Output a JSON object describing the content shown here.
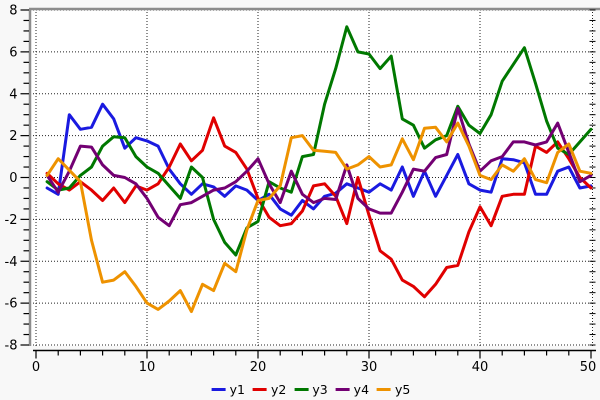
{
  "figure": {
    "background_color": "#f8f8f8",
    "plot_background_color": "#ffffff",
    "frame_color": "#8c8c8c",
    "grid_style": "dotted",
    "grid_color": "#222222",
    "axis_color": "#000000"
  },
  "chart_data": {
    "type": "line",
    "title": "",
    "xlabel": "",
    "ylabel": "",
    "xlim": [
      0,
      50
    ],
    "ylim": [
      -8,
      8
    ],
    "x_ticks": [
      0,
      10,
      20,
      30,
      40,
      50
    ],
    "x_minor_step": 2,
    "y_ticks": [
      8,
      6,
      4,
      2,
      0,
      -2,
      -4,
      -6,
      -8
    ],
    "y_minor_step": 0.5,
    "grid": "dotted",
    "legend_position": "bottom-center",
    "x": [
      1,
      2,
      3,
      4,
      5,
      6,
      7,
      8,
      9,
      10,
      11,
      12,
      13,
      14,
      15,
      16,
      17,
      18,
      19,
      20,
      21,
      22,
      23,
      24,
      25,
      26,
      27,
      28,
      29,
      30,
      31,
      32,
      33,
      34,
      35,
      36,
      37,
      38,
      39,
      40,
      41,
      42,
      43,
      44,
      45,
      46,
      47,
      48,
      49,
      50
    ],
    "series": [
      {
        "name": "y1",
        "color": "#1a1ae0",
        "values": [
          -0.5,
          -0.8,
          3.0,
          2.3,
          2.4,
          3.5,
          2.8,
          1.4,
          1.9,
          1.75,
          1.5,
          0.4,
          -0.3,
          -0.8,
          -0.3,
          -0.45,
          -0.9,
          -0.4,
          -0.6,
          -1.1,
          -0.8,
          -1.5,
          -1.8,
          -1.1,
          -1.5,
          -0.9,
          -0.75,
          -0.3,
          -0.5,
          -0.7,
          -0.3,
          -0.6,
          0.5,
          -0.9,
          0.3,
          -0.9,
          0.1,
          1.1,
          -0.3,
          -0.6,
          -0.7,
          0.9,
          0.85,
          0.7,
          -0.8,
          -0.8,
          0.3,
          0.5,
          -0.5,
          -0.4
        ]
      },
      {
        "name": "y2",
        "color": "#e00000",
        "values": [
          0.2,
          -0.3,
          -0.6,
          -0.2,
          -0.6,
          -1.1,
          -0.5,
          -1.2,
          -0.4,
          -0.6,
          -0.3,
          0.5,
          1.6,
          0.8,
          1.3,
          2.85,
          1.5,
          1.2,
          0.4,
          -1.0,
          -1.9,
          -2.3,
          -2.2,
          -1.6,
          -0.4,
          -0.3,
          -0.9,
          -2.2,
          0.0,
          -1.8,
          -3.5,
          -3.9,
          -4.9,
          -5.2,
          -5.7,
          -5.1,
          -4.3,
          -4.2,
          -2.6,
          -1.4,
          -2.3,
          -0.9,
          -0.8,
          -0.8,
          1.5,
          1.2,
          1.7,
          0.9,
          0.0,
          -0.5
        ]
      },
      {
        "name": "y3",
        "color": "#007800",
        "values": [
          -0.2,
          -0.6,
          -0.5,
          0.1,
          0.5,
          1.5,
          1.95,
          1.9,
          1.0,
          0.5,
          0.2,
          -0.4,
          -1.0,
          0.5,
          0.0,
          -2.0,
          -3.1,
          -3.7,
          -2.4,
          -2.1,
          -0.2,
          -0.5,
          -0.7,
          1.0,
          1.1,
          3.5,
          5.2,
          7.2,
          6.0,
          5.9,
          5.2,
          5.8,
          2.8,
          2.5,
          1.4,
          1.8,
          2.0,
          3.4,
          2.5,
          2.1,
          3.0,
          4.6,
          5.4,
          6.2,
          4.5,
          2.7,
          1.4,
          1.1,
          1.7,
          2.3
        ]
      },
      {
        "name": "y4",
        "color": "#730073",
        "values": [
          0.1,
          -0.7,
          0.3,
          1.5,
          1.45,
          0.6,
          0.1,
          0.0,
          -0.3,
          -1.0,
          -1.9,
          -2.3,
          -1.3,
          -1.2,
          -0.9,
          -0.6,
          -0.5,
          -0.2,
          0.3,
          0.9,
          -0.3,
          -1.2,
          0.3,
          -0.8,
          -1.2,
          -1.0,
          -1.05,
          0.6,
          -1.0,
          -1.5,
          -1.7,
          -1.7,
          -0.7,
          0.4,
          0.3,
          0.95,
          1.1,
          3.3,
          1.6,
          0.3,
          0.8,
          1.0,
          1.7,
          1.7,
          1.55,
          1.7,
          2.6,
          1.2,
          -0.2,
          0.1
        ]
      },
      {
        "name": "y5",
        "color": "#ee9200",
        "values": [
          0.1,
          0.9,
          0.35,
          -0.2,
          -3.0,
          -5.0,
          -4.9,
          -4.5,
          -5.2,
          -6.0,
          -6.3,
          -5.9,
          -5.4,
          -6.4,
          -5.1,
          -5.4,
          -4.1,
          -4.5,
          -2.5,
          -1.1,
          -1.0,
          -0.4,
          1.9,
          2.0,
          1.3,
          1.25,
          1.2,
          0.4,
          0.6,
          1.0,
          0.5,
          0.6,
          1.85,
          0.85,
          2.35,
          2.4,
          1.7,
          2.6,
          1.5,
          0.1,
          -0.1,
          0.6,
          0.3,
          0.9,
          -0.1,
          -0.25,
          1.2,
          1.6,
          0.3,
          0.2
        ]
      }
    ]
  },
  "legend": {
    "items": [
      {
        "label": "y1",
        "color": "#1a1ae0"
      },
      {
        "label": "y2",
        "color": "#e00000"
      },
      {
        "label": "y3",
        "color": "#007800"
      },
      {
        "label": "y4",
        "color": "#730073"
      },
      {
        "label": "y5",
        "color": "#ee9200"
      }
    ]
  }
}
